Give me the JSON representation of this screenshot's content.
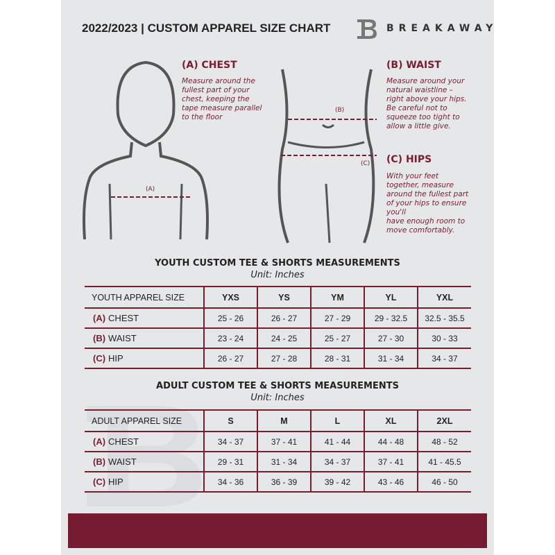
{
  "header": {
    "title": "2022/2023  |  CUSTOM APPAREL SIZE CHART",
    "brand": "BREAKAWAY",
    "logo_letter": "B"
  },
  "measures": {
    "chest": {
      "title": "(A) CHEST",
      "marker": "(A)",
      "desc": [
        "Measure around the",
        "fullest part of your",
        "chest, keeping the",
        "tape measure parallel",
        "to the floor"
      ]
    },
    "waist": {
      "title": "(B) WAIST",
      "marker": "(B)",
      "desc": [
        "Measure around your",
        "natural waistline –",
        "right above your hips.",
        "Be careful not to",
        "squeeze too tight to",
        "allow a little give."
      ]
    },
    "hips": {
      "title": "(C) HIPS",
      "marker": "(C)",
      "desc": [
        "With your feet",
        "together, measure",
        "around the fullest part",
        "of your hips to ensure",
        "you'll",
        "have enough room to",
        "move comfortably."
      ]
    }
  },
  "youth": {
    "title": "YOUTH CUSTOM TEE & SHORTS MEASUREMENTS",
    "unit": "Unit: Inches",
    "size_label": "YOUTH APPAREL SIZE",
    "sizes": [
      "YXS",
      "YS",
      "YM",
      "YL",
      "YXL"
    ],
    "rows": [
      {
        "code": "(A)",
        "name": "CHEST",
        "values": [
          "25 - 26",
          "26 - 27",
          "27 - 29",
          "29 - 32.5",
          "32.5 - 35.5"
        ]
      },
      {
        "code": "(B)",
        "name": "WAIST",
        "values": [
          "23 - 24",
          "24 - 25",
          "25 - 27",
          "27 - 30",
          "30 - 33"
        ]
      },
      {
        "code": "(C)",
        "name": "HIP",
        "values": [
          "26 - 27",
          "27 - 28",
          "28 - 31",
          "31 - 34",
          "34 - 37"
        ]
      }
    ]
  },
  "adult": {
    "title": "ADULT CUSTOM TEE & SHORTS MEASUREMENTS",
    "unit": "Unit: Inches",
    "size_label": "ADULT APPAREL SIZE",
    "sizes": [
      "S",
      "M",
      "L",
      "XL",
      "2XL"
    ],
    "rows": [
      {
        "code": "(A)",
        "name": "CHEST",
        "values": [
          "34 - 37",
          "37 - 41",
          "41 - 44",
          "44 - 48",
          "48 - 52"
        ]
      },
      {
        "code": "(B)",
        "name": "WAIST",
        "values": [
          "29 - 31",
          "31 - 34",
          "34 - 37",
          "37 - 41",
          "41 - 45.5"
        ]
      },
      {
        "code": "(C)",
        "name": "HIP",
        "values": [
          "34 - 36",
          "36 - 39",
          "39 - 42",
          "43 - 46",
          "46 - 50"
        ]
      }
    ]
  },
  "colors": {
    "accent": "#761c32",
    "panel": "#e6e7e9"
  }
}
